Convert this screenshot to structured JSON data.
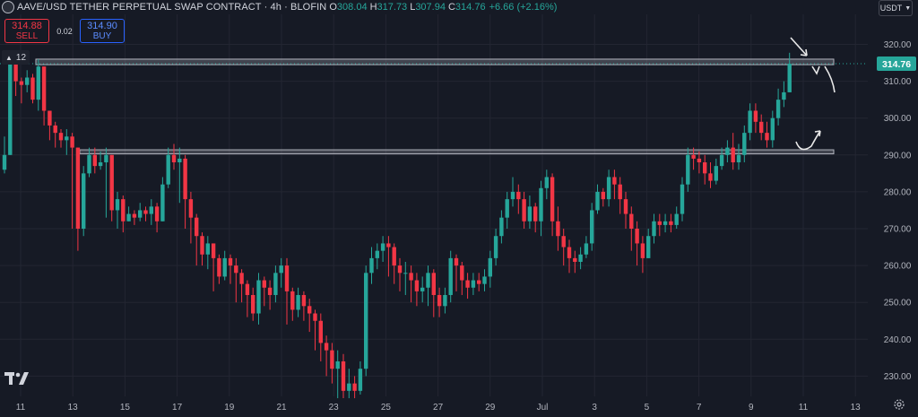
{
  "header": {
    "title": "AAVE/USD TETHER PERPETUAL SWAP CONTRACT · 4h · BLOFIN",
    "o_label": "O",
    "o_value": "308.04",
    "h_label": "H",
    "h_value": "317.73",
    "l_label": "L",
    "l_value": "307.94",
    "c_label": "C",
    "c_value": "314.76",
    "change": "+6.66 (+2.16%)"
  },
  "trade": {
    "sell_price": "314.88",
    "sell_label": "SELL",
    "spread": "0.02",
    "buy_price": "314.90",
    "buy_label": "BUY"
  },
  "collapse": {
    "count": "12"
  },
  "currency": {
    "label": "USDT"
  },
  "colors": {
    "up": "#26a69a",
    "down": "#f23645",
    "background": "#161a25",
    "grid": "#232632",
    "box": "#b2b5be",
    "last_price": "#26a69a"
  },
  "chart_data": {
    "type": "candlestick",
    "timeframe": "4h",
    "ylim": [
      223,
      327
    ],
    "y_ticks": [
      230,
      240,
      250,
      260,
      270,
      280,
      290,
      300,
      310,
      320
    ],
    "x_ticks": [
      "11",
      "13",
      "15",
      "17",
      "19",
      "21",
      "23",
      "25",
      "27",
      "29",
      "Jul",
      "3",
      "5",
      "7",
      "9",
      "11",
      "13"
    ],
    "last_price": 314.76,
    "last_price_label": "314.76",
    "resistance_zone": [
      314.5,
      316.0
    ],
    "support_zone": [
      290.3,
      291.4
    ],
    "closes": [
      290,
      315,
      310,
      309,
      311,
      305,
      314,
      302,
      298,
      296,
      294,
      295,
      292,
      270,
      285,
      290,
      287,
      288,
      290,
      275,
      278,
      272,
      274,
      273,
      275,
      274,
      276,
      272,
      282,
      290,
      288,
      289,
      278,
      273,
      268,
      263,
      266,
      262,
      257,
      262,
      260,
      258,
      255,
      252,
      247,
      256,
      254,
      252,
      258,
      260,
      253,
      248,
      252,
      249,
      247,
      245,
      239,
      237,
      232,
      234,
      226,
      228,
      226,
      232,
      258,
      262,
      264,
      266,
      265,
      260,
      258,
      258,
      256,
      253,
      254,
      258,
      252,
      249,
      252,
      262,
      260,
      256,
      254,
      256,
      255,
      257,
      262,
      268,
      273,
      278,
      280,
      278,
      272,
      276,
      272,
      281,
      284,
      272,
      268,
      265,
      262,
      261,
      263,
      266,
      275,
      280,
      278,
      284,
      282,
      278,
      274,
      270,
      266,
      262,
      268,
      272,
      271,
      272,
      271,
      274,
      282,
      290,
      289,
      288,
      285,
      283,
      287,
      290,
      292,
      288,
      290,
      296,
      302,
      299,
      296,
      294,
      300,
      305,
      307,
      314.76
    ],
    "highs": [
      295,
      317,
      312,
      311,
      313,
      312,
      316,
      306,
      300,
      299,
      297,
      297,
      296,
      292,
      287,
      292,
      292,
      291,
      292,
      290,
      280,
      279,
      276,
      275,
      277,
      276,
      278,
      277,
      284,
      292,
      293,
      292,
      290,
      280,
      274,
      269,
      268,
      266,
      263,
      264,
      263,
      262,
      259,
      256,
      254,
      258,
      257,
      256,
      260,
      262,
      262,
      254,
      254,
      253,
      251,
      248,
      247,
      241,
      239,
      237,
      236,
      232,
      230,
      234,
      260,
      265,
      266,
      268,
      268,
      266,
      262,
      261,
      260,
      258,
      257,
      260,
      259,
      254,
      254,
      264,
      263,
      261,
      258,
      258,
      258,
      259,
      264,
      270,
      275,
      280,
      284,
      282,
      280,
      279,
      277,
      283,
      286,
      285,
      276,
      270,
      267,
      264,
      265,
      268,
      277,
      282,
      281,
      286,
      286,
      284,
      280,
      276,
      272,
      268,
      270,
      274,
      274,
      274,
      274,
      276,
      284,
      292,
      292,
      291,
      290,
      288,
      289,
      292,
      294,
      296,
      293,
      298,
      304,
      304,
      301,
      299,
      302,
      308,
      310,
      317.73
    ],
    "lows": [
      285,
      290,
      306,
      304,
      307,
      304,
      302,
      298,
      294,
      292,
      292,
      290,
      270,
      264,
      268,
      284,
      285,
      286,
      273,
      272,
      270,
      269,
      272,
      271,
      272,
      272,
      271,
      269,
      272,
      281,
      286,
      277,
      270,
      266,
      260,
      260,
      259,
      253,
      255,
      256,
      255,
      250,
      250,
      246,
      245,
      244,
      249,
      248,
      250,
      254,
      244,
      245,
      246,
      245,
      242,
      237,
      234,
      230,
      228,
      224,
      224,
      224,
      224,
      225,
      230,
      255,
      259,
      261,
      257,
      255,
      253,
      252,
      250,
      249,
      250,
      249,
      246,
      246,
      247,
      250,
      253,
      252,
      251,
      252,
      253,
      253,
      254,
      260,
      266,
      270,
      276,
      274,
      270,
      270,
      269,
      268,
      278,
      268,
      264,
      260,
      258,
      258,
      259,
      262,
      264,
      274,
      276,
      276,
      278,
      274,
      270,
      264,
      260,
      258,
      262,
      266,
      268,
      269,
      269,
      270,
      272,
      280,
      286,
      285,
      282,
      281,
      282,
      286,
      288,
      286,
      286,
      288,
      294,
      296,
      294,
      292,
      292,
      298,
      303,
      307.94
    ]
  }
}
